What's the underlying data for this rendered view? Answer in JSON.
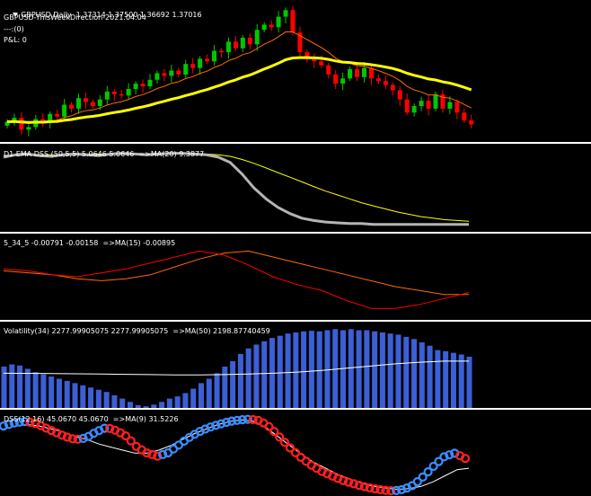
{
  "main": {
    "symbol": "GBPUSD,Daily",
    "ohlc": "1.37314 1.37500 1.36692 1.37016",
    "indicator": "GBPUSD-ThisWeekDirection-2021.04.04",
    "line3": "---:(0)",
    "pnl": "P&L: 0"
  },
  "subpanes": [
    {
      "label": "D1 EMA DSS (50,5,5) 5.0646 5.0646  =>MA(20) 9.3877"
    },
    {
      "label": "5_34_5 -0.00791 -0.00158  =>MA(15) -0.00895"
    },
    {
      "label": "Volatility(34) 2277.99905075 2277.99905075  =>MA(50) 2198.87740459"
    },
    {
      "label": "DSS(12,16) 45.0670 45.0670  =>MA(9) 31.5226"
    }
  ],
  "colors": {
    "bull": "#00c800",
    "bear": "#ff0000",
    "ma_fast": "#ff6a00",
    "ma_slow": "#ffff00",
    "dss_grey": "#b4b4b4",
    "vol_bar": "#3c5fd6",
    "dss_up": "#3c8cff",
    "dss_down": "#ff2020"
  },
  "chart_data": [
    {
      "type": "candlestick",
      "title": "GBPUSD,Daily",
      "series": [
        {
          "name": "GBPUSD",
          "close": [
            1.372,
            1.375,
            1.366,
            1.368,
            1.374,
            1.371,
            1.378,
            1.376,
            1.385,
            1.382,
            1.39,
            1.387,
            1.384,
            1.389,
            1.395,
            1.393,
            1.392,
            1.397,
            1.401,
            1.399,
            1.404,
            1.409,
            1.407,
            1.411,
            1.408,
            1.416,
            1.413,
            1.42,
            1.418,
            1.426,
            1.425,
            1.433,
            1.428,
            1.436,
            1.431,
            1.442,
            1.446,
            1.444,
            1.452,
            1.457,
            1.44,
            1.425,
            1.421,
            1.418,
            1.415,
            1.408,
            1.401,
            1.405,
            1.412,
            1.406,
            1.413,
            1.405,
            1.403,
            1.4,
            1.396,
            1.389,
            1.379,
            1.384,
            1.388,
            1.382,
            1.393,
            1.382,
            1.387,
            1.379,
            1.373,
            1.37
          ]
        }
      ]
    },
    {
      "type": "line",
      "title": "D1 EMA DSS (50,5,5)",
      "series": [
        {
          "name": "D1 EMA DSS",
          "values": [
            92,
            95,
            96,
            94,
            93,
            95,
            96,
            95,
            94,
            96,
            97,
            96,
            95,
            96,
            97,
            97,
            96,
            95,
            92,
            85,
            70,
            52,
            38,
            27,
            19,
            13,
            10,
            8,
            7,
            6,
            6,
            5,
            5,
            5,
            5,
            5,
            5,
            5,
            5,
            5
          ]
        },
        {
          "name": "MA(20)",
          "values": [
            94,
            95,
            95,
            95,
            95,
            95,
            96,
            96,
            96,
            96,
            96,
            96,
            96,
            96,
            96,
            96,
            96,
            96,
            95,
            93,
            89,
            84,
            78,
            72,
            66,
            60,
            54,
            48,
            43,
            38,
            33,
            29,
            25,
            21,
            18,
            15,
            13,
            11,
            10,
            9
          ]
        }
      ],
      "ylim": [
        0,
        100
      ]
    },
    {
      "type": "line",
      "title": "5_34_5",
      "series": [
        {
          "name": "5_34_5",
          "values": [
            0.004,
            0.003,
            0.001,
            0.0,
            0.002,
            0.004,
            0.007,
            0.01,
            0.013,
            0.011,
            0.006,
            0.0,
            -0.004,
            -0.007,
            -0.012,
            -0.016,
            -0.016,
            -0.014,
            -0.011,
            -0.008
          ]
        },
        {
          "name": "MA(15)",
          "values": [
            0.003,
            0.002,
            0.001,
            -0.001,
            -0.002,
            -0.001,
            0.001,
            0.005,
            0.009,
            0.012,
            0.013,
            0.01,
            0.007,
            0.004,
            0.001,
            -0.002,
            -0.005,
            -0.007,
            -0.009,
            -0.009
          ]
        }
      ],
      "ylim": [
        -0.02,
        0.02
      ]
    },
    {
      "type": "bar",
      "title": "Volatility(34)",
      "series": [
        {
          "name": "Volatility(34)",
          "values": [
            2100,
            2140,
            2120,
            2060,
            2000,
            1960,
            1920,
            1880,
            1840,
            1800,
            1760,
            1720,
            1680,
            1640,
            1580,
            1520,
            1460,
            1400,
            1380,
            1410,
            1460,
            1520,
            1560,
            1620,
            1700,
            1800,
            1880,
            1980,
            2100,
            2200,
            2330,
            2430,
            2500,
            2560,
            2620,
            2660,
            2700,
            2720,
            2740,
            2750,
            2740,
            2760,
            2780,
            2760,
            2780,
            2760,
            2760,
            2740,
            2720,
            2700,
            2680,
            2640,
            2600,
            2540,
            2480,
            2400,
            2380,
            2350,
            2320,
            2280
          ]
        },
        {
          "name": "MA(50)",
          "values": [
            1980,
            1978,
            1975,
            1970,
            1965,
            1960,
            1955,
            1950,
            1950,
            1955,
            1965,
            1980,
            2000,
            2030,
            2070,
            2110,
            2150,
            2180,
            2199,
            2200
          ]
        }
      ],
      "ylim": [
        1350,
        2850
      ]
    },
    {
      "type": "line",
      "title": "DSS(12,16)",
      "series": [
        {
          "name": "DSS(12,16)",
          "values": [
            88,
            92,
            94,
            92,
            86,
            80,
            74,
            70,
            72,
            80,
            86,
            82,
            74,
            60,
            52,
            48,
            52,
            62,
            72,
            80,
            86,
            90,
            94,
            96,
            97,
            95,
            86,
            72,
            58,
            46,
            36,
            28,
            22,
            16,
            12,
            8,
            5,
            3,
            2,
            4,
            10,
            22,
            36,
            48,
            52,
            45
          ]
        },
        {
          "name": "MA(9)",
          "values": [
            84,
            88,
            90,
            88,
            84,
            80,
            74,
            70,
            64,
            60,
            56,
            52,
            52,
            56,
            62,
            70,
            78,
            84,
            90,
            94,
            96,
            94,
            86,
            74,
            62,
            50,
            40,
            32,
            24,
            18,
            12,
            8,
            6,
            4,
            5,
            8,
            14,
            22,
            30,
            32
          ]
        }
      ],
      "ylim": [
        0,
        100
      ]
    }
  ]
}
